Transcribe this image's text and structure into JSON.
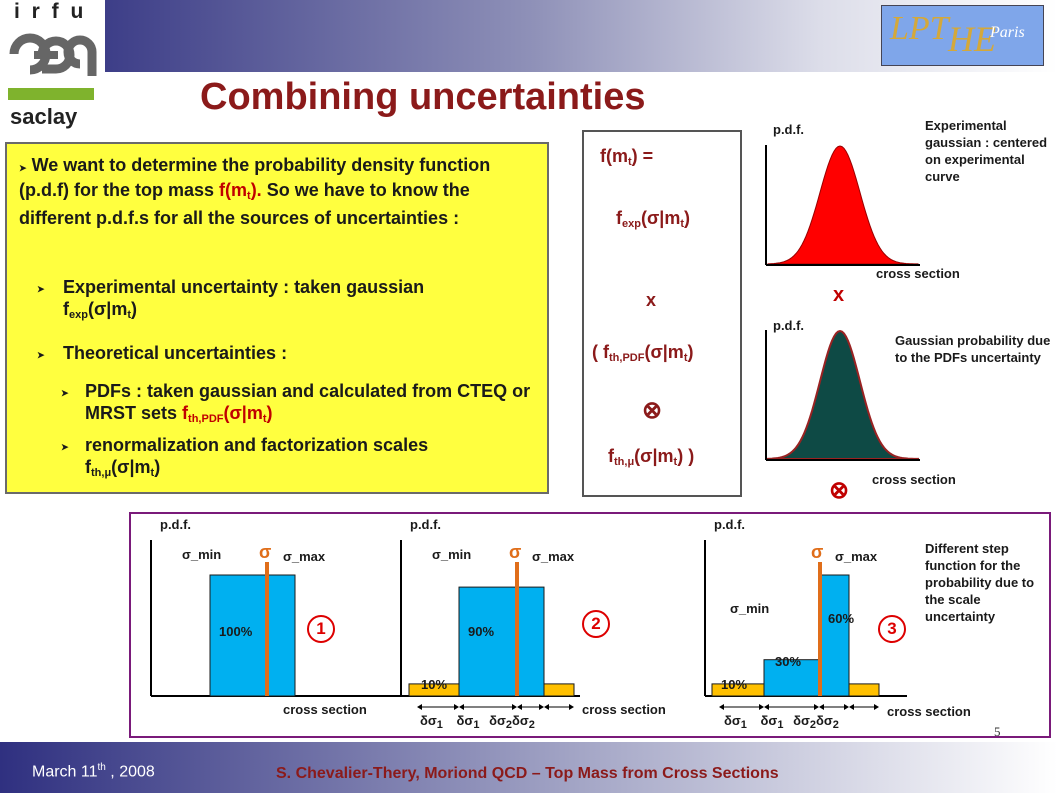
{
  "header": {
    "title": "Combining uncertainties",
    "logo_left": [
      "i r f u",
      "cea",
      "saclay"
    ],
    "logo_right": [
      "LPT",
      "HE",
      "Paris"
    ]
  },
  "left_box": {
    "intro": "We want to determine the probability density function (p.d.f) for the top mass",
    "intro_fm": "f(m",
    "intro_fm_sub": "t",
    "intro_fm_close": ").",
    "intro_tail": "So we have to know the different p.d.f.s for all the sources of uncertainties :",
    "exp_label": "Experimental uncertainty : taken gaussian",
    "exp_f": "f",
    "exp_sub": "exp",
    "exp_arg": "(σ|m",
    "exp_arg_sub": "t",
    "exp_close": ")",
    "theo_label": "Theoretical uncertainties :",
    "pdf_label": "PDFs : taken gaussian and calculated from CTEQ or MRST sets",
    "pdf_f": "f",
    "pdf_sub": "th,PDF",
    "pdf_arg": "(σ|m",
    "pdf_arg_sub": "t",
    "pdf_close": ")",
    "scale_label": "renormalization and factorization scales",
    "scale_f": "f",
    "scale_sub": "th,μ",
    "scale_arg": "(σ|m",
    "scale_arg_sub": "t",
    "scale_close": ")"
  },
  "formula": {
    "lhs": "f(m",
    "lhs_sub": "t",
    "lhs_close": ") =",
    "f1": "f",
    "f1_sub": "exp",
    "f1_arg": "(σ|m",
    "f1_arg_sub": "t",
    "f1_close": ")",
    "times": "x",
    "f2_open": "( f",
    "f2_sub": "th,PDF",
    "f2_arg": "(σ|m",
    "f2_arg_sub": "t",
    "f2_close": ")",
    "conv": "⊗",
    "f3": "f",
    "f3_sub": "th,μ",
    "f3_arg": "(σ|m",
    "f3_arg_sub": "t",
    "f3_close": ") )"
  },
  "gauss_exp": {
    "ylabel": "p.d.f.",
    "xlabel": "cross section",
    "note": "Experimental gaussian : centered on experimental curve",
    "color": "#ff0000"
  },
  "between_op": "x",
  "gauss_pdf": {
    "ylabel": "p.d.f.",
    "xlabel": "cross section",
    "note": "Gaussian probability due to the PDFs uncertainty",
    "color": "#0e4a45"
  },
  "after_op": "⊗",
  "step_panels": {
    "ylabel": "p.d.f.",
    "xlabel": "cross section",
    "sigma": "σ",
    "sigma_min": "σ_min",
    "sigma_max": "σ_max",
    "ds1": "δσ",
    "ds1_sub": "1",
    "ds2": "δσ",
    "ds2_sub": "2",
    "p1_pct": "100%",
    "p1_num": "1",
    "p2_mid": "90%",
    "p2_low": "10%",
    "p2_num": "2",
    "p3_top": "60%",
    "p3_mid": "30%",
    "p3_low": "10%",
    "p3_num": "3",
    "note": "Different step function for the probability due to the scale uncertainty",
    "bar_color": "#00b0f0",
    "low_color": "#ffc000",
    "line_color": "#e06e1a"
  },
  "page_number": "5",
  "footer": {
    "date_a": "March 11",
    "date_sup": "th",
    "date_b": " , 2008",
    "citation": "S. Chevalier-Thery, Moriond QCD – Top Mass from Cross Sections"
  },
  "chart_data": [
    {
      "type": "area",
      "title": "",
      "xlabel": "cross section",
      "ylabel": "p.d.f.",
      "series": [
        {
          "name": "",
          "values": []
        }
      ]
    },
    {
      "type": "area",
      "title": "",
      "xlabel": "cross section",
      "ylabel": "p.d.f.",
      "series": [
        {
          "name": "",
          "values": []
        }
      ]
    },
    {
      "type": "bar",
      "xlabel": "cross section",
      "ylabel": "p.d.f.",
      "categories": [
        "σ_min..σ_max"
      ],
      "values": [
        100
      ]
    },
    {
      "type": "bar",
      "xlabel": "cross section",
      "ylabel": "p.d.f.",
      "categories": [
        "δσ1 low",
        "σ_min..σ_max",
        "δσ2 high"
      ],
      "values": [
        10,
        90,
        10
      ]
    },
    {
      "type": "bar",
      "xlabel": "cross section",
      "ylabel": "p.d.f.",
      "categories": [
        "δσ1 low",
        "δσ1 mid",
        "σ_min..σ_max",
        "δσ2 high"
      ],
      "values": [
        10,
        30,
        60,
        10
      ]
    }
  ]
}
